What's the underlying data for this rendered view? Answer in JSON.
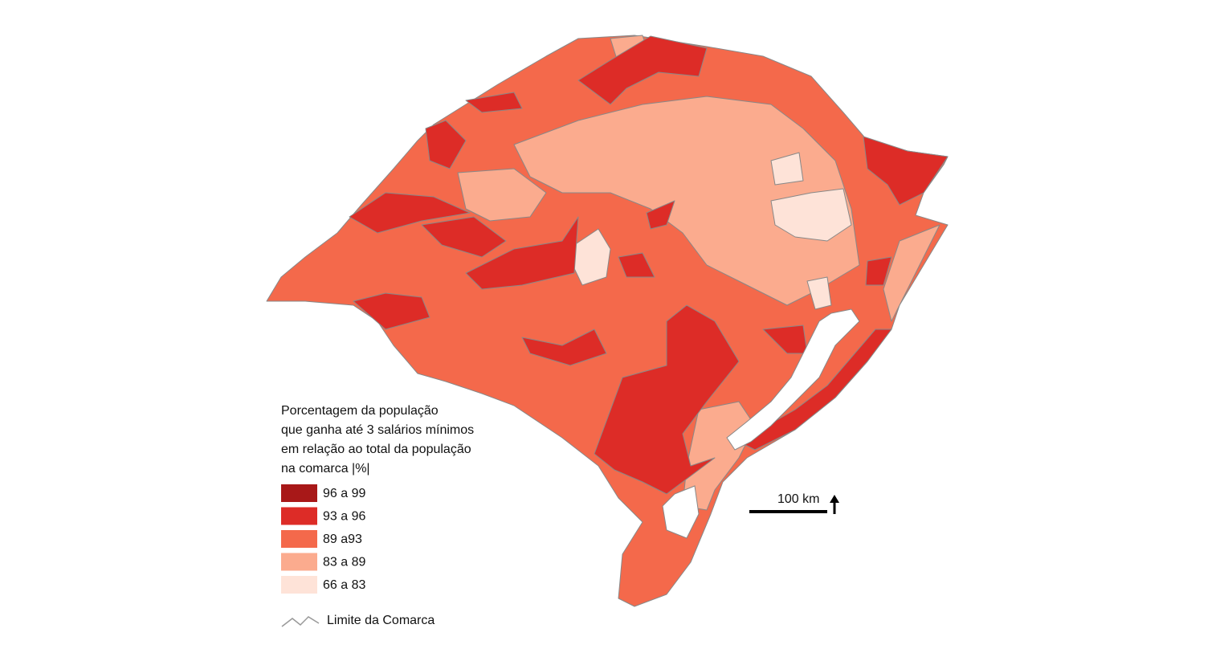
{
  "legend": {
    "title": [
      "Porcentagem da população",
      "que ganha até 3 salários mínimos",
      "em relação ao total da população",
      "na comarca |%|"
    ],
    "items": [
      {
        "label": "96 a 99",
        "color": "#a81818"
      },
      {
        "label": "93 a 96",
        "color": "#dd2c27"
      },
      {
        "label": "89 a93",
        "color": "#f4694b"
      },
      {
        "label": "83 a 89",
        "color": "#fbab8e"
      },
      {
        "label": "66 a 83",
        "color": "#fee3d8"
      }
    ],
    "boundary": "Limite da Comarca"
  },
  "scale": {
    "label": "100 km"
  }
}
